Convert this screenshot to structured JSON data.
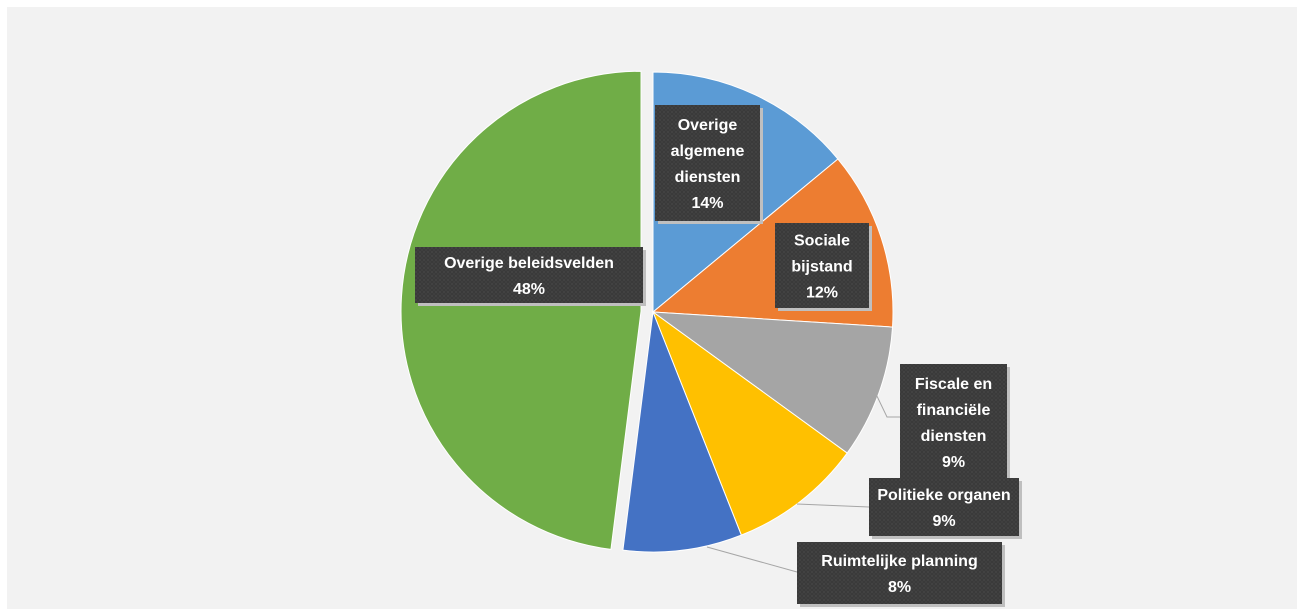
{
  "chart_data": {
    "type": "pie",
    "title": "",
    "legend": "none",
    "series": [
      {
        "slices": [
          {
            "label": "Overige algemene diensten",
            "value": 14,
            "value_label": "14%",
            "color": "#5b9bd5"
          },
          {
            "label": "Sociale bijstand",
            "value": 12,
            "value_label": "12%",
            "color": "#ed7d31"
          },
          {
            "label": "Fiscale en financiële diensten",
            "value": 9,
            "value_label": "9%",
            "color": "#a5a5a5"
          },
          {
            "label": "Politieke organen",
            "value": 9,
            "value_label": "9%",
            "color": "#ffc000"
          },
          {
            "label": "Ruimtelijke planning",
            "value": 8,
            "value_label": "8%",
            "color": "#4472c4"
          },
          {
            "label": "Overige beleidsvelden",
            "value": 48,
            "value_label": "48%",
            "color": "#70ad47",
            "exploded": true
          }
        ]
      }
    ]
  }
}
